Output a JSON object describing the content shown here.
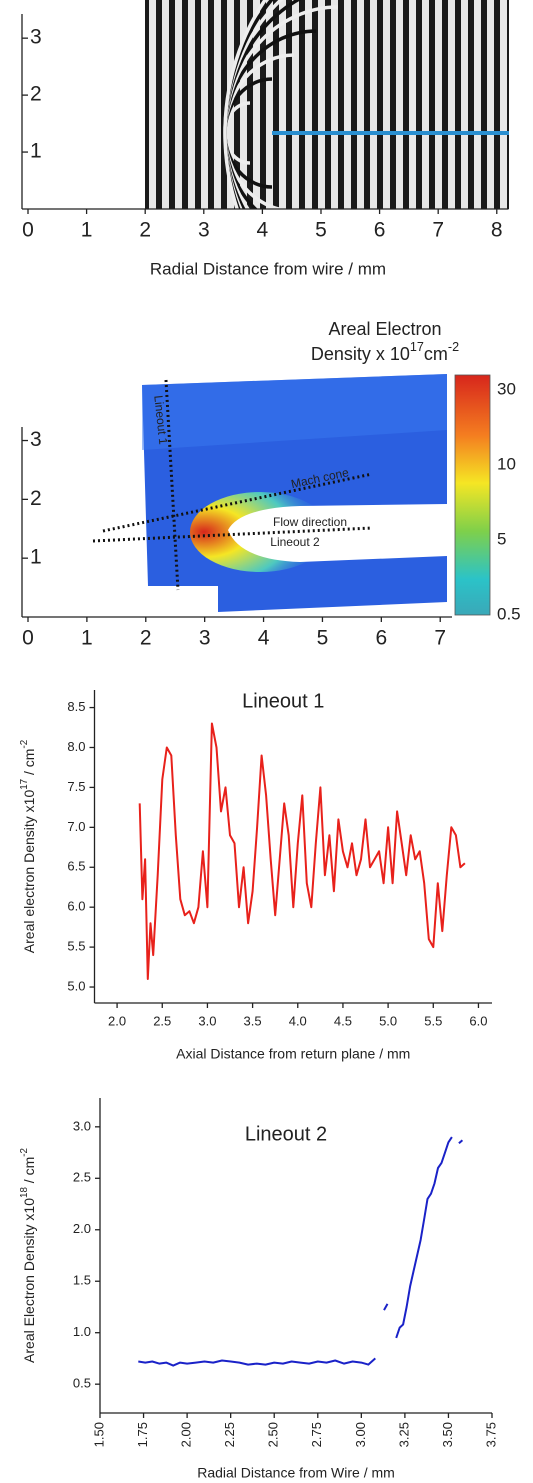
{
  "chart_data": [
    {
      "type": "image",
      "x_label": "Radial Distance from wire / mm",
      "xlim": [
        0,
        8.2
      ],
      "xticks": [
        0,
        1,
        2,
        3,
        4,
        5,
        6,
        7,
        8
      ],
      "ylim": [
        0,
        3.6
      ],
      "yticks": [
        1,
        2,
        3
      ]
    },
    {
      "type": "image",
      "title": [
        "Areal Electron",
        "Density  x 10",
        "17",
        "cm",
        "-2"
      ],
      "colorbar_labels": [
        "30",
        "10",
        "5",
        "0.5"
      ],
      "annotations": [
        "Lineout 1",
        "Mach cone",
        "Flow direction",
        "Lineout 2"
      ],
      "xlim": [
        0,
        7.2
      ],
      "xticks": [
        0,
        1,
        2,
        3,
        4,
        5,
        6,
        7
      ],
      "ylim": [
        0,
        3.4
      ],
      "yticks": [
        1,
        2,
        3
      ]
    },
    {
      "type": "line",
      "title": "Lineout 1",
      "x_label": "Axial Distance from return plane / mm",
      "y_label": [
        "Areal electron Density x10",
        "17",
        " / cm",
        "-2"
      ],
      "xlim": [
        1.75,
        6.15
      ],
      "xticks": [
        {
          "value": 2,
          "label": "2.0"
        },
        2.5,
        {
          "value": 3,
          "label": "3.0"
        },
        3.5,
        {
          "value": 4,
          "label": "4.0"
        },
        4.5,
        {
          "value": 5,
          "label": "5.0"
        },
        5.5,
        {
          "value": 6,
          "label": "6.0"
        }
      ],
      "ylim": [
        4.8,
        8.72
      ],
      "yticks": [
        {
          "value": 5,
          "label": "5.0"
        },
        5.5,
        {
          "value": 6,
          "label": "6.0"
        },
        6.5,
        {
          "value": 7,
          "label": "7.0"
        },
        7.5,
        {
          "value": 8,
          "label": "8.0"
        },
        8.5
      ],
      "x": [
        2.25,
        2.28,
        2.31,
        2.34,
        2.37,
        2.4,
        2.45,
        2.5,
        2.55,
        2.6,
        2.65,
        2.7,
        2.75,
        2.8,
        2.85,
        2.9,
        2.95,
        3.0,
        3.05,
        3.1,
        3.15,
        3.2,
        3.25,
        3.3,
        3.35,
        3.4,
        3.45,
        3.5,
        3.55,
        3.6,
        3.65,
        3.7,
        3.75,
        3.8,
        3.85,
        3.9,
        3.95,
        4.0,
        4.05,
        4.1,
        4.15,
        4.2,
        4.25,
        4.3,
        4.35,
        4.4,
        4.45,
        4.5,
        4.55,
        4.6,
        4.65,
        4.7,
        4.75,
        4.8,
        4.85,
        4.9,
        4.95,
        5.0,
        5.05,
        5.1,
        5.15,
        5.2,
        5.25,
        5.3,
        5.35,
        5.4,
        5.45,
        5.5,
        5.55,
        5.6,
        5.65,
        5.7,
        5.75,
        5.8,
        5.85
      ],
      "series": [
        {
          "color": "#e8211b",
          "values": [
            7.3,
            6.1,
            6.6,
            5.1,
            5.8,
            5.4,
            6.4,
            7.6,
            8.0,
            7.9,
            6.9,
            6.1,
            5.9,
            5.95,
            5.8,
            6.0,
            6.7,
            6.0,
            8.3,
            8.0,
            7.2,
            7.5,
            6.9,
            6.8,
            6.0,
            6.5,
            5.8,
            6.2,
            7.0,
            7.9,
            7.4,
            6.6,
            5.9,
            6.6,
            7.3,
            6.9,
            6.0,
            6.8,
            7.4,
            6.3,
            6.0,
            6.8,
            7.5,
            6.4,
            6.9,
            6.2,
            7.1,
            6.7,
            6.5,
            6.8,
            6.4,
            6.6,
            7.1,
            6.5,
            6.6,
            6.7,
            6.3,
            7.0,
            6.3,
            7.2,
            6.8,
            6.4,
            6.9,
            6.6,
            6.7,
            6.3,
            5.6,
            5.5,
            6.3,
            5.7,
            6.4,
            7.0,
            6.9,
            6.5,
            6.55
          ]
        }
      ]
    },
    {
      "type": "line",
      "title": "Lineout 2",
      "x_label": "Radial Distance from Wire / mm",
      "y_label": [
        "Areal Electron Density x10",
        "18",
        " / cm",
        "-2"
      ],
      "xlim": [
        1.5,
        3.75
      ],
      "xticks": [
        {
          "value": 1.5,
          "label": "1.50"
        },
        1.75,
        {
          "value": 2,
          "label": "2.00"
        },
        2.25,
        {
          "value": 2.5,
          "label": "2.50"
        },
        2.75,
        {
          "value": 3,
          "label": "3.00"
        },
        3.25,
        {
          "value": 3.5,
          "label": "3.50"
        },
        3.75
      ],
      "ylim": [
        0.22,
        3.28
      ],
      "yticks": [
        0.5,
        {
          "value": 1,
          "label": "1.0"
        },
        1.5,
        {
          "value": 2,
          "label": "2.0"
        },
        2.5,
        {
          "value": 3,
          "label": "3.0"
        }
      ],
      "x": [
        1.72,
        1.76,
        1.8,
        1.84,
        1.88,
        1.92,
        1.96,
        2.0,
        2.05,
        2.1,
        2.15,
        2.2,
        2.25,
        2.3,
        2.35,
        2.4,
        2.45,
        2.5,
        2.55,
        2.6,
        2.65,
        2.7,
        2.75,
        2.8,
        2.85,
        2.9,
        2.95,
        3.0,
        3.04,
        3.08,
        3.1,
        3.13,
        3.15,
        3.17,
        3.2,
        3.22,
        3.24,
        3.26,
        3.28,
        3.3,
        3.32,
        3.34,
        3.36,
        3.38,
        3.4,
        3.42,
        3.44,
        3.46,
        3.48,
        3.5,
        3.52,
        3.54,
        3.56,
        3.58
      ],
      "series": [
        {
          "color": "#1a22c8",
          "values": [
            0.72,
            0.71,
            0.72,
            0.7,
            0.71,
            0.68,
            0.71,
            0.7,
            0.71,
            0.72,
            0.71,
            0.73,
            0.72,
            0.71,
            0.69,
            0.7,
            0.69,
            0.71,
            0.7,
            0.72,
            0.71,
            0.7,
            0.72,
            0.71,
            0.73,
            0.7,
            0.72,
            0.71,
            0.69,
            0.75,
            null,
            1.22,
            1.28,
            null,
            0.95,
            1.05,
            1.08,
            1.25,
            1.45,
            1.6,
            1.75,
            1.9,
            2.1,
            2.3,
            2.35,
            2.45,
            2.6,
            2.65,
            2.75,
            2.85,
            2.9,
            null,
            2.84,
            2.87
          ]
        }
      ]
    }
  ]
}
